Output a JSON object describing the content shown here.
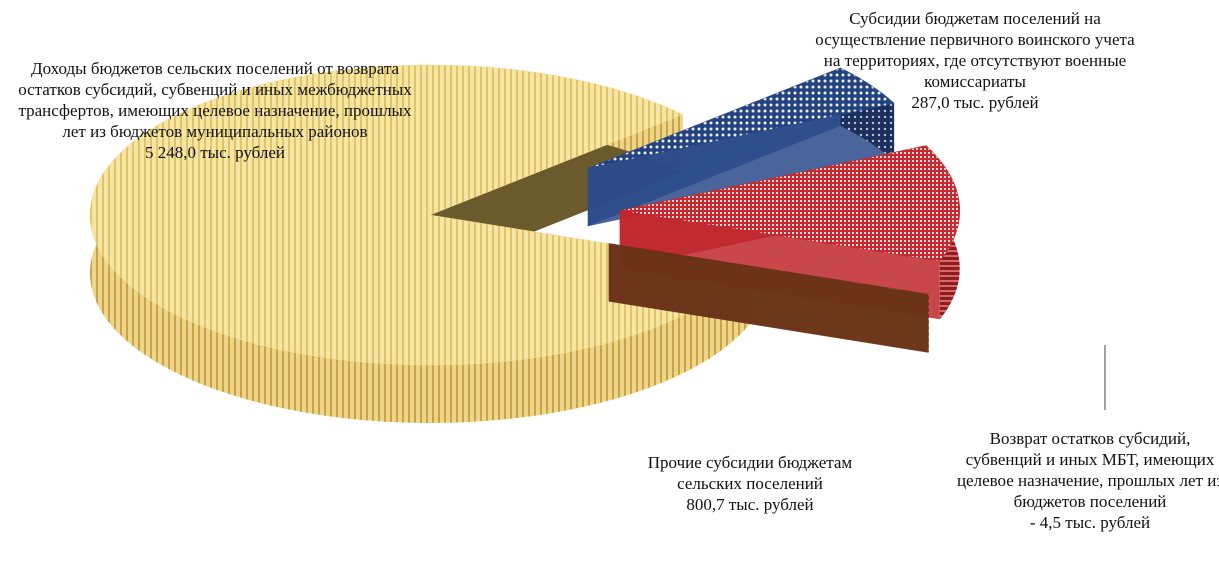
{
  "chart_data": {
    "type": "pie3d",
    "categories": [
      "Доходы бюджетов сельских поселений от возврата остатков субсидий, субвенций и иных межбюджетных трансфертов, имеющих целевое назначение, прошлых лет из бюджетов муниципальных районов",
      "Субсидии бюджетам поселений на осуществление первичного воинского учета на территориях, где отсутствуют военные комиссариаты",
      "Прочие субсидии бюджетам сельских поселений",
      "Возврат остатков субсидий, субвенций и иных МБТ, имеющих целевое назначение, прошлых лет из бюджетов поселений"
    ],
    "values": [
      5248.0,
      287.0,
      800.7,
      -4.5
    ],
    "value_labels": [
      "5 248,0 тыс. рублей",
      "287,0 тыс. рублей",
      "800,7 тыс. рублей",
      "- 4,5 тыс. рублей"
    ],
    "colors": [
      "#f2dc8f",
      "#2a4a8a",
      "#c0262c",
      "#6a3318"
    ]
  }
}
